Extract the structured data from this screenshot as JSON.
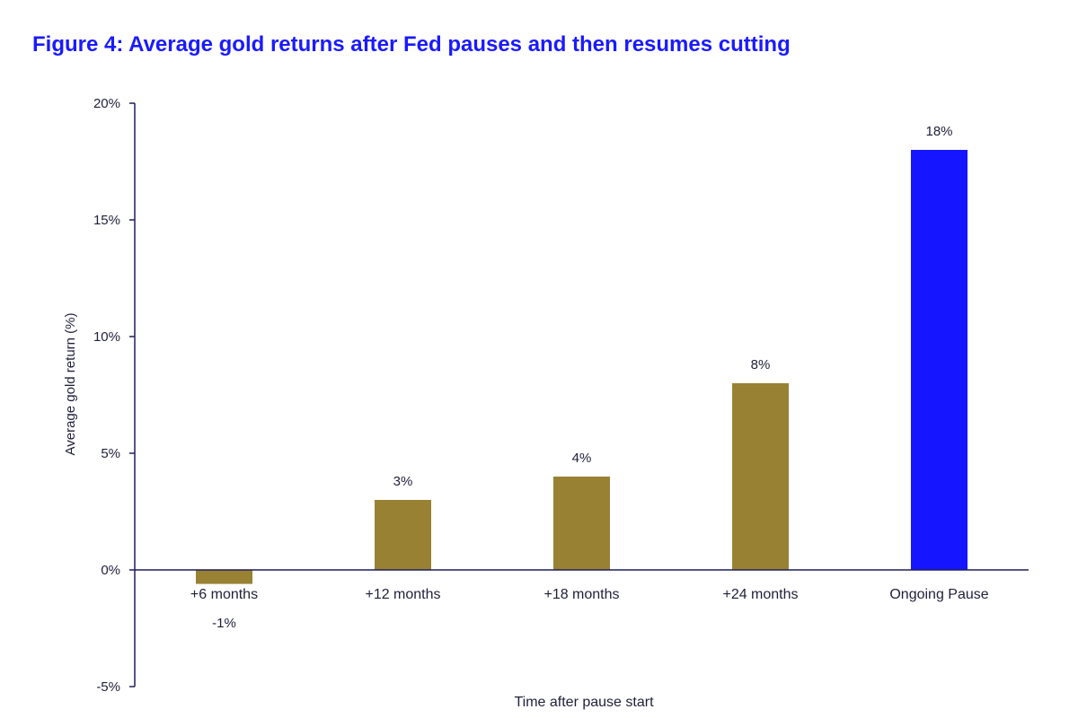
{
  "chart_data": {
    "type": "bar",
    "title": "Figure 4: Average gold returns after Fed pauses and then resumes cutting",
    "xlabel": "Time after pause start",
    "ylabel": "Average gold return (%)",
    "ylim": [
      -5,
      20
    ],
    "y_ticks": [
      20,
      15,
      10,
      5,
      0,
      -5
    ],
    "y_tick_labels": [
      "20%",
      "15%",
      "10%",
      "5%",
      "0%",
      "-5%"
    ],
    "grid": false,
    "legend": "none",
    "categories": [
      "+6 months",
      "+12 months",
      "+18 months",
      "+24 months",
      "Ongoing Pause"
    ],
    "values": [
      -0.6,
      3,
      4,
      8,
      18
    ],
    "data_labels": [
      "-1%",
      "3%",
      "4%",
      "8%",
      "18%"
    ]
  },
  "colors": {
    "title": "#1a1aff",
    "gold_bar": "#998134",
    "highlight_bar": "#1515ff",
    "axis": "#1f1f5a",
    "text": "#1f1f3a"
  }
}
